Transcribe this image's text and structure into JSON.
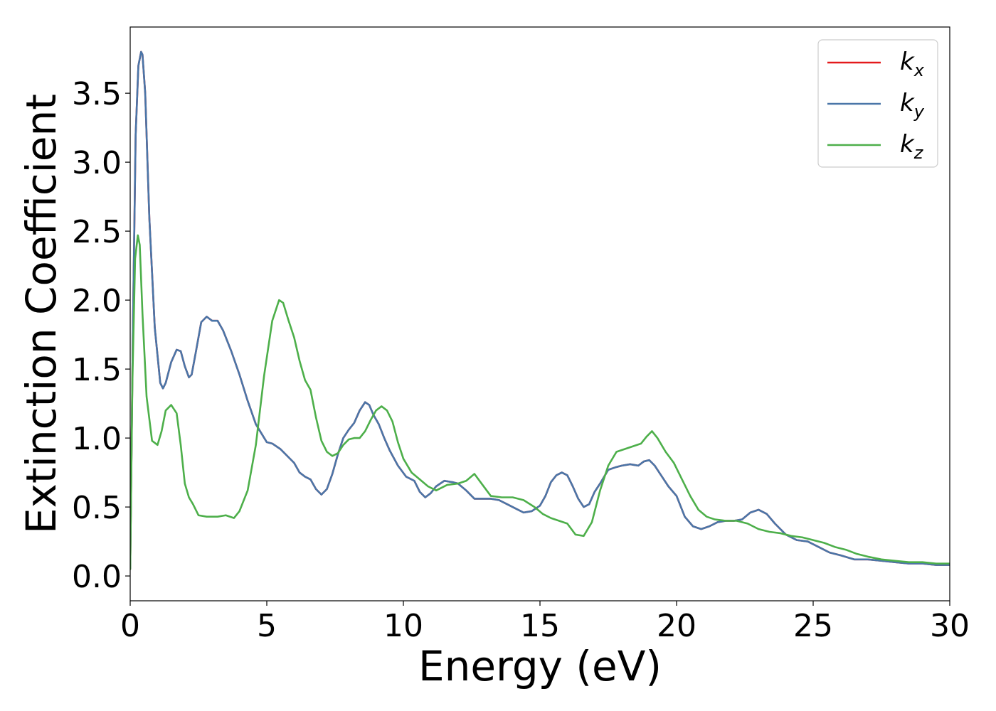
{
  "chart_data": {
    "type": "line",
    "title": "",
    "xlabel": "Energy (eV)",
    "ylabel": "Extinction Coefficient",
    "xlim": [
      0,
      30
    ],
    "ylim": [
      -0.18,
      3.98
    ],
    "xticks": [
      "0",
      "5",
      "10",
      "15",
      "20",
      "25",
      "30"
    ],
    "yticks": [
      "0.0",
      "0.5",
      "1.0",
      "1.5",
      "2.0",
      "2.5",
      "3.0",
      "3.5"
    ],
    "grid": false,
    "legend_position": "top-right",
    "series": [
      {
        "name": "k",
        "subscript": "x",
        "color": "#e41a1c",
        "x": [
          0,
          0.1,
          0.2,
          0.3,
          0.4,
          0.45,
          0.55,
          0.7,
          0.9,
          1.1,
          1.2,
          1.3,
          1.5,
          1.7,
          1.85,
          2.0,
          2.15,
          2.25,
          2.4,
          2.6,
          2.8,
          3.0,
          3.2,
          3.4,
          3.7,
          4.0,
          4.3,
          4.6,
          5.0,
          5.2,
          5.5,
          5.8,
          6.0,
          6.2,
          6.4,
          6.6,
          6.8,
          7.0,
          7.2,
          7.4,
          7.6,
          7.8,
          8.0,
          8.2,
          8.4,
          8.6,
          8.75,
          8.9,
          9.1,
          9.3,
          9.5,
          9.8,
          10.1,
          10.4,
          10.6,
          10.8,
          11.0,
          11.2,
          11.5,
          11.8,
          12.0,
          12.3,
          12.6,
          12.9,
          13.2,
          13.5,
          13.8,
          14.1,
          14.4,
          14.7,
          15.0,
          15.2,
          15.4,
          15.6,
          15.8,
          16.0,
          16.2,
          16.4,
          16.6,
          16.8,
          17.0,
          17.2,
          17.5,
          17.8,
          18.0,
          18.3,
          18.6,
          18.8,
          19.0,
          19.2,
          19.4,
          19.7,
          20.0,
          20.3,
          20.6,
          20.9,
          21.2,
          21.5,
          21.8,
          22.1,
          22.4,
          22.7,
          23.0,
          23.3,
          23.6,
          24.0,
          24.4,
          24.8,
          25.2,
          25.6,
          26.0,
          26.5,
          27.0,
          27.5,
          28.0,
          28.5,
          29.0,
          29.5,
          30.0
        ],
        "values": [
          0.05,
          1.8,
          3.2,
          3.7,
          3.8,
          3.78,
          3.5,
          2.6,
          1.8,
          1.4,
          1.36,
          1.4,
          1.55,
          1.64,
          1.63,
          1.52,
          1.44,
          1.46,
          1.62,
          1.84,
          1.88,
          1.85,
          1.85,
          1.78,
          1.63,
          1.46,
          1.27,
          1.1,
          0.97,
          0.96,
          0.92,
          0.86,
          0.82,
          0.75,
          0.72,
          0.7,
          0.63,
          0.59,
          0.63,
          0.74,
          0.88,
          1.0,
          1.06,
          1.11,
          1.2,
          1.26,
          1.24,
          1.17,
          1.1,
          1.0,
          0.91,
          0.8,
          0.72,
          0.69,
          0.61,
          0.57,
          0.6,
          0.65,
          0.69,
          0.68,
          0.67,
          0.62,
          0.56,
          0.56,
          0.56,
          0.55,
          0.52,
          0.49,
          0.46,
          0.47,
          0.51,
          0.58,
          0.68,
          0.73,
          0.75,
          0.73,
          0.65,
          0.56,
          0.5,
          0.52,
          0.61,
          0.67,
          0.77,
          0.79,
          0.8,
          0.81,
          0.8,
          0.83,
          0.84,
          0.8,
          0.74,
          0.65,
          0.58,
          0.43,
          0.36,
          0.34,
          0.36,
          0.39,
          0.4,
          0.4,
          0.41,
          0.46,
          0.48,
          0.45,
          0.38,
          0.3,
          0.26,
          0.25,
          0.21,
          0.17,
          0.15,
          0.12,
          0.12,
          0.11,
          0.1,
          0.09,
          0.09,
          0.08,
          0.08
        ]
      },
      {
        "name": "k",
        "subscript": "y",
        "color": "#4a76a8",
        "x": [
          0,
          0.1,
          0.2,
          0.3,
          0.4,
          0.45,
          0.55,
          0.7,
          0.9,
          1.1,
          1.2,
          1.3,
          1.5,
          1.7,
          1.85,
          2.0,
          2.15,
          2.25,
          2.4,
          2.6,
          2.8,
          3.0,
          3.2,
          3.4,
          3.7,
          4.0,
          4.3,
          4.6,
          5.0,
          5.2,
          5.5,
          5.8,
          6.0,
          6.2,
          6.4,
          6.6,
          6.8,
          7.0,
          7.2,
          7.4,
          7.6,
          7.8,
          8.0,
          8.2,
          8.4,
          8.6,
          8.75,
          8.9,
          9.1,
          9.3,
          9.5,
          9.8,
          10.1,
          10.4,
          10.6,
          10.8,
          11.0,
          11.2,
          11.5,
          11.8,
          12.0,
          12.3,
          12.6,
          12.9,
          13.2,
          13.5,
          13.8,
          14.1,
          14.4,
          14.7,
          15.0,
          15.2,
          15.4,
          15.6,
          15.8,
          16.0,
          16.2,
          16.4,
          16.6,
          16.8,
          17.0,
          17.2,
          17.5,
          17.8,
          18.0,
          18.3,
          18.6,
          18.8,
          19.0,
          19.2,
          19.4,
          19.7,
          20.0,
          20.3,
          20.6,
          20.9,
          21.2,
          21.5,
          21.8,
          22.1,
          22.4,
          22.7,
          23.0,
          23.3,
          23.6,
          24.0,
          24.4,
          24.8,
          25.2,
          25.6,
          26.0,
          26.5,
          27.0,
          27.5,
          28.0,
          28.5,
          29.0,
          29.5,
          30.0
        ],
        "values": [
          0.05,
          1.8,
          3.2,
          3.7,
          3.8,
          3.78,
          3.5,
          2.6,
          1.8,
          1.4,
          1.36,
          1.4,
          1.55,
          1.64,
          1.63,
          1.52,
          1.44,
          1.46,
          1.62,
          1.84,
          1.88,
          1.85,
          1.85,
          1.78,
          1.63,
          1.46,
          1.27,
          1.1,
          0.97,
          0.96,
          0.92,
          0.86,
          0.82,
          0.75,
          0.72,
          0.7,
          0.63,
          0.59,
          0.63,
          0.74,
          0.88,
          1.0,
          1.06,
          1.11,
          1.2,
          1.26,
          1.24,
          1.17,
          1.1,
          1.0,
          0.91,
          0.8,
          0.72,
          0.69,
          0.61,
          0.57,
          0.6,
          0.65,
          0.69,
          0.68,
          0.67,
          0.62,
          0.56,
          0.56,
          0.56,
          0.55,
          0.52,
          0.49,
          0.46,
          0.47,
          0.51,
          0.58,
          0.68,
          0.73,
          0.75,
          0.73,
          0.65,
          0.56,
          0.5,
          0.52,
          0.61,
          0.67,
          0.77,
          0.79,
          0.8,
          0.81,
          0.8,
          0.83,
          0.84,
          0.8,
          0.74,
          0.65,
          0.58,
          0.43,
          0.36,
          0.34,
          0.36,
          0.39,
          0.4,
          0.4,
          0.41,
          0.46,
          0.48,
          0.45,
          0.38,
          0.3,
          0.26,
          0.25,
          0.21,
          0.17,
          0.15,
          0.12,
          0.12,
          0.11,
          0.1,
          0.09,
          0.09,
          0.08,
          0.08
        ]
      },
      {
        "name": "k",
        "subscript": "z",
        "color": "#4daf4a",
        "x": [
          0,
          0.08,
          0.18,
          0.28,
          0.35,
          0.45,
          0.6,
          0.8,
          1.0,
          1.15,
          1.3,
          1.5,
          1.7,
          1.85,
          2.0,
          2.15,
          2.3,
          2.5,
          2.8,
          3.0,
          3.2,
          3.5,
          3.8,
          4.0,
          4.3,
          4.6,
          4.9,
          5.2,
          5.45,
          5.6,
          5.8,
          6.0,
          6.2,
          6.4,
          6.6,
          6.8,
          7.0,
          7.2,
          7.4,
          7.6,
          7.8,
          8.0,
          8.2,
          8.4,
          8.6,
          8.8,
          9.0,
          9.2,
          9.4,
          9.6,
          9.8,
          10.0,
          10.3,
          10.6,
          10.9,
          11.2,
          11.6,
          12.0,
          12.3,
          12.6,
          12.9,
          13.2,
          13.6,
          14.0,
          14.4,
          14.8,
          15.1,
          15.4,
          15.7,
          16.0,
          16.3,
          16.6,
          16.9,
          17.2,
          17.5,
          17.8,
          18.1,
          18.4,
          18.7,
          18.9,
          19.1,
          19.3,
          19.6,
          19.9,
          20.2,
          20.5,
          20.8,
          21.1,
          21.4,
          21.8,
          22.2,
          22.6,
          23.0,
          23.4,
          23.8,
          24.2,
          24.6,
          25.0,
          25.4,
          25.8,
          26.2,
          26.6,
          27.0,
          27.5,
          28.0,
          28.5,
          29.0,
          29.5,
          30.0
        ],
        "values": [
          0.05,
          1.4,
          2.3,
          2.47,
          2.4,
          1.9,
          1.3,
          0.98,
          0.95,
          1.05,
          1.2,
          1.24,
          1.18,
          0.95,
          0.67,
          0.57,
          0.52,
          0.44,
          0.43,
          0.43,
          0.43,
          0.44,
          0.42,
          0.47,
          0.62,
          0.95,
          1.45,
          1.85,
          2.0,
          1.98,
          1.85,
          1.73,
          1.56,
          1.42,
          1.35,
          1.15,
          0.98,
          0.9,
          0.87,
          0.89,
          0.95,
          0.99,
          1.0,
          1.0,
          1.05,
          1.13,
          1.2,
          1.23,
          1.2,
          1.12,
          0.97,
          0.85,
          0.75,
          0.7,
          0.65,
          0.62,
          0.66,
          0.67,
          0.69,
          0.74,
          0.66,
          0.58,
          0.57,
          0.57,
          0.55,
          0.5,
          0.45,
          0.42,
          0.4,
          0.38,
          0.3,
          0.29,
          0.39,
          0.62,
          0.8,
          0.9,
          0.92,
          0.94,
          0.96,
          1.01,
          1.05,
          1.0,
          0.9,
          0.82,
          0.7,
          0.58,
          0.48,
          0.43,
          0.41,
          0.4,
          0.4,
          0.38,
          0.34,
          0.32,
          0.31,
          0.29,
          0.28,
          0.26,
          0.24,
          0.21,
          0.19,
          0.16,
          0.14,
          0.12,
          0.11,
          0.1,
          0.1,
          0.09,
          0.09
        ]
      }
    ]
  }
}
